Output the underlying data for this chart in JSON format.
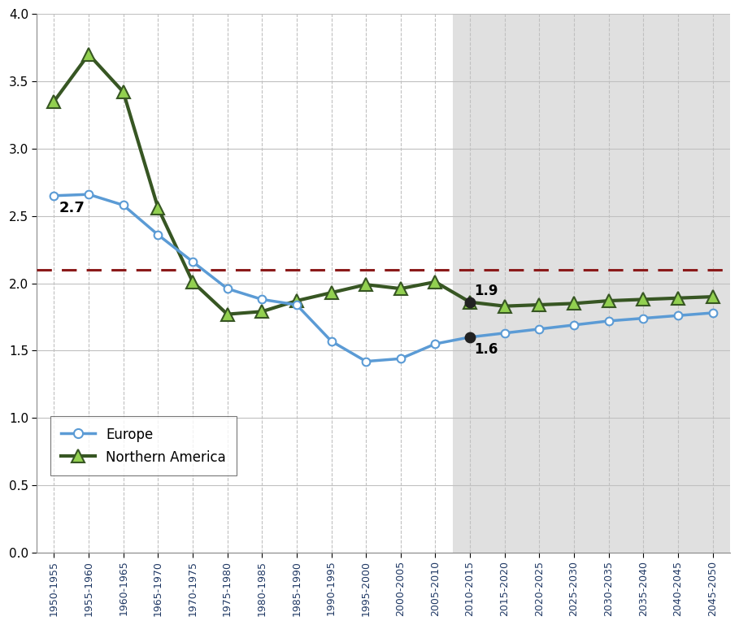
{
  "x_labels": [
    "1950-1955",
    "1955-1960",
    "1960-1965",
    "1965-1970",
    "1970-1975",
    "1975-1980",
    "1980-1985",
    "1985-1990",
    "1990-1995",
    "1995-2000",
    "2000-2005",
    "2005-2010",
    "2010-2015",
    "2015-2020",
    "2020-2025",
    "2025-2030",
    "2030-2035",
    "2035-2040",
    "2040-2045",
    "2045-2050"
  ],
  "europe_values": [
    2.65,
    2.66,
    2.58,
    2.36,
    2.16,
    1.96,
    1.88,
    1.84,
    1.57,
    1.42,
    1.44,
    1.55,
    1.6,
    1.63,
    1.66,
    1.69,
    1.72,
    1.74,
    1.76,
    1.78
  ],
  "northern_america_values": [
    3.35,
    3.7,
    3.42,
    2.56,
    2.01,
    1.77,
    1.79,
    1.87,
    1.93,
    1.99,
    1.96,
    2.01,
    1.86,
    1.83,
    1.84,
    1.85,
    1.87,
    1.88,
    1.89,
    1.9
  ],
  "replacement_level": 2.1,
  "annotation_1950_value": "2.7",
  "annotation_2010_europe": "1.6",
  "annotation_2010_na": "1.9",
  "split_idx": 12,
  "europe_line_color": "#5b9bd5",
  "europe_marker_face": "#ffffff",
  "europe_marker_edge": "#5b9bd5",
  "na_line_color": "#375623",
  "na_marker_face": "#92d050",
  "na_marker_edge": "#375623",
  "dashed_line_color": "#8B1A1A",
  "bg_color_left": "#ffffff",
  "bg_color_right": "#e0e0e0",
  "xtick_color": "#1f3864",
  "grid_color": "#c0c0c0",
  "ylim": [
    0.0,
    4.0
  ],
  "yticks": [
    0.0,
    0.5,
    1.0,
    1.5,
    2.0,
    2.5,
    3.0,
    3.5,
    4.0
  ]
}
